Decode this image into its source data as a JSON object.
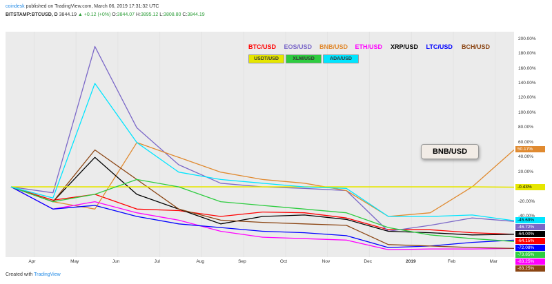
{
  "header": {
    "author": "coindesk",
    "published": "published on TradingView.com, March 06, 2019 17:31:32 UTC",
    "symbol": "BITSTAMP:BTCUSD, D",
    "price": "3844.19",
    "change": "▲ +0.12 (+0%)",
    "open_label": "O:",
    "open": "3844.07",
    "high_label": "H:",
    "high": "3895.12",
    "low_label": "L:",
    "low": "3808.80",
    "close_label": "C:",
    "close": "3844.19"
  },
  "footer": {
    "created_with": "Created with",
    "brand": "TradingView"
  },
  "callout": {
    "label": "BNB/USD"
  },
  "colors": {
    "plot_bg": "#ebebeb",
    "zero_line": "#e6e600",
    "axis_text": "#333333"
  },
  "chart_data": {
    "type": "line",
    "title": "",
    "xlabel": "",
    "ylabel": "",
    "ylim": [
      -95,
      210
    ],
    "x_ticks": [
      "Apr",
      "May",
      "Jun",
      "Jul",
      "Aug",
      "Sep",
      "Oct",
      "Nov",
      "Dec",
      "2019",
      "Feb",
      "Mar"
    ],
    "y_ticks": [
      "200.00%",
      "180.00%",
      "160.00%",
      "140.00%",
      "120.00%",
      "100.00%",
      "80.00%",
      "60.00%",
      "40.00%",
      "20.00%",
      "-20.00%",
      "-40.00%"
    ],
    "legend_rows": [
      [
        "BTC/USD",
        "EOS/USD",
        "BNB/USD",
        "ETH/USD",
        "XRP/USD",
        "LTC/USD",
        "BCH/USD"
      ],
      [
        "USDT/USD",
        "XLM/USD",
        "ADA/USD"
      ]
    ],
    "x_months": [
      0,
      1,
      2,
      3,
      4,
      5,
      6,
      7,
      8,
      9,
      10,
      11,
      12
    ],
    "series": [
      {
        "name": "BTC/USD",
        "color": "#ff0000",
        "end_label": "-64.15%",
        "values": [
          0,
          -18,
          -10,
          -30,
          -32,
          -40,
          -34,
          -35,
          -42,
          -58,
          -58,
          -62,
          -64.15
        ]
      },
      {
        "name": "EOS/USD",
        "color": "#7b68c8",
        "end_label": "-46.72%",
        "values": [
          0,
          -8,
          190,
          80,
          30,
          5,
          0,
          -2,
          -5,
          -60,
          -52,
          -42,
          -46.72
        ]
      },
      {
        "name": "BNB/USD",
        "color": "#e08a30",
        "end_label": "50.17%",
        "values": [
          0,
          -20,
          -30,
          60,
          40,
          20,
          10,
          5,
          -5,
          -40,
          -35,
          0,
          50.17
        ]
      },
      {
        "name": "ETH/USD",
        "color": "#ff00ff",
        "end_label": "-83.25%",
        "values": [
          0,
          -30,
          -20,
          -35,
          -45,
          -60,
          -68,
          -70,
          -72,
          -85,
          -84,
          -84,
          -83.25
        ]
      },
      {
        "name": "XRP/USD",
        "color": "#000000",
        "end_label": "-64.00%",
        "values": [
          0,
          -20,
          40,
          -10,
          -30,
          -50,
          -40,
          -38,
          -44,
          -60,
          -62,
          -65,
          -64
        ]
      },
      {
        "name": "LTC/USD",
        "color": "#0000ff",
        "end_label": "-72.08%",
        "values": [
          0,
          -30,
          -25,
          -40,
          -50,
          -55,
          -60,
          -62,
          -66,
          -82,
          -80,
          -75,
          -72.08
        ]
      },
      {
        "name": "BCH/USD",
        "color": "#8b4513",
        "end_label": "-83.25%",
        "values": [
          0,
          -20,
          50,
          10,
          -30,
          -45,
          -48,
          -50,
          -52,
          -78,
          -80,
          -82,
          -83.25
        ]
      },
      {
        "name": "USDT/USD",
        "color": "#e6e600",
        "end_label": "-0.43%",
        "values": [
          0,
          0,
          0,
          0,
          0,
          0,
          0,
          0,
          0,
          0,
          0,
          0,
          -0.43
        ]
      },
      {
        "name": "XLM/USD",
        "color": "#2ecc40",
        "end_label": "-73.85%",
        "values": [
          0,
          -20,
          -10,
          10,
          0,
          -20,
          -25,
          -30,
          -35,
          -55,
          -65,
          -70,
          -73.85
        ]
      },
      {
        "name": "ADA/USD",
        "color": "#00e5ff",
        "end_label": "-45.69%",
        "values": [
          0,
          -15,
          140,
          60,
          20,
          10,
          5,
          0,
          -2,
          -40,
          -40,
          -38,
          -45.69
        ]
      }
    ]
  }
}
